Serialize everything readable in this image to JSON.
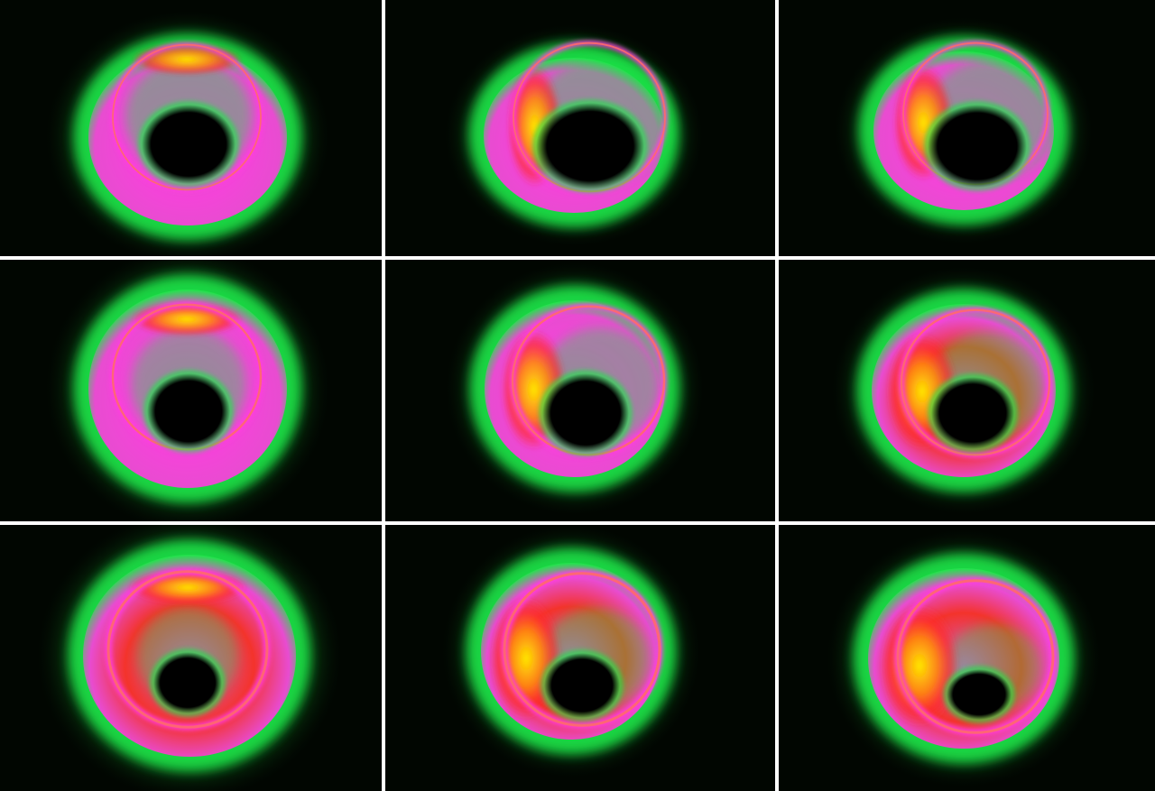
{
  "image": {
    "kind": "3x3 grid of simulated black-hole accretion disk renderings",
    "grid": {
      "rows": 3,
      "cols": 3
    },
    "selected_panel": 0,
    "colors": {
      "background": "#010601",
      "grid_line": "#ffffff",
      "selection_border": "#3a55ff",
      "glow": "#1fe84a",
      "disk_magenta": "#ff3ce0",
      "disk_red": "#ff2a2a",
      "disk_yellow": "#ffea00",
      "shadow": "#000000"
    },
    "panels": [
      {
        "name": "panel-r1c1",
        "lobe": "top",
        "intensity": 0.55,
        "ring": "thin"
      },
      {
        "name": "panel-r1c2",
        "lobe": "left",
        "intensity": 0.55,
        "ring": "thin"
      },
      {
        "name": "panel-r1c3",
        "lobe": "left",
        "intensity": 0.65,
        "ring": "thin"
      },
      {
        "name": "panel-r2c1",
        "lobe": "top",
        "intensity": 0.75,
        "ring": "medium"
      },
      {
        "name": "panel-r2c2",
        "lobe": "left",
        "intensity": 0.75,
        "ring": "medium"
      },
      {
        "name": "panel-r2c3",
        "lobe": "left",
        "intensity": 0.85,
        "ring": "medium"
      },
      {
        "name": "panel-r3c1",
        "lobe": "top",
        "intensity": 0.95,
        "ring": "thick"
      },
      {
        "name": "panel-r3c2",
        "lobe": "left",
        "intensity": 0.85,
        "ring": "thick"
      },
      {
        "name": "panel-r3c3",
        "lobe": "left",
        "intensity": 1.0,
        "ring": "thick"
      }
    ]
  }
}
